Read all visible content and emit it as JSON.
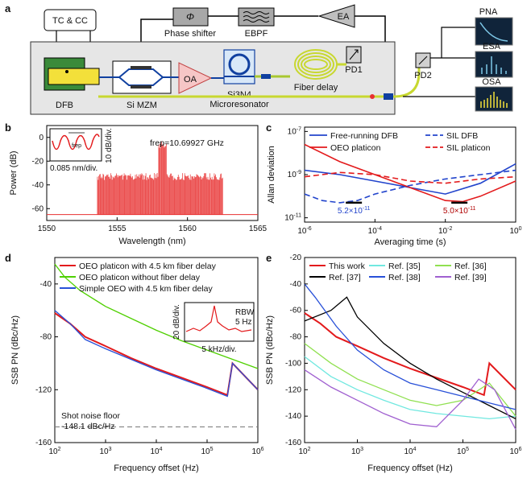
{
  "panel_labels": {
    "a": "a",
    "b": "b",
    "c": "c",
    "d": "d",
    "e": "e"
  },
  "diagram": {
    "tc_cc": "TC & CC",
    "phase_shifter_symbol": "Φ",
    "phase_shifter": "Phase shifter",
    "ebpf": "EBPF",
    "ea": "EA",
    "dfb": "DFB",
    "mzm": "Si MZM",
    "oa": "OA",
    "resonator_line1": "Si3N4",
    "resonator_line2": "Microresonator",
    "fiber_delay": "Fiber delay",
    "pd1": "PD1",
    "pd2": "PD2",
    "pna": "PNA",
    "esa": "ESA",
    "osa": "OSA",
    "colors": {
      "chip": "#e6e6e6",
      "dfb_green": "#3a8a3a",
      "dfb_yellow": "#f3e03a",
      "oa": "#f6c6c6",
      "ea": "#bfbfbf",
      "screen": "#10243a"
    }
  },
  "chart_data": [
    {
      "id": "b",
      "type": "line",
      "xlabel": "Wavelength (nm)",
      "ylabel": "Power (dB)",
      "xlim": [
        1550,
        1565
      ],
      "ylim": [
        -70,
        10
      ],
      "xticks": [
        "1550",
        "1555",
        "1560",
        "1565"
      ],
      "yticks": [
        "0",
        "-20",
        "-40",
        "-60"
      ],
      "annotation": "frep=10.69927 GHz",
      "comb": {
        "center": 1558.2,
        "span_lo": 1553.6,
        "span_hi": 1562.5,
        "spacing_nm": 0.085,
        "edge_power": -30,
        "center_power": -3,
        "floor": -65
      },
      "inset": {
        "xlabel": "0.085 nm/div.",
        "ylabel": "10 dB/div.",
        "marker": "frep"
      },
      "color": "#e83030"
    },
    {
      "id": "c",
      "type": "line",
      "scale": "log-log",
      "xlabel": "Averaging time (s)",
      "ylabel": "Allan deviation",
      "xticks": [
        "10-6",
        "10-4",
        "10-2",
        "100"
      ],
      "yticks": [
        "10-7",
        "10-9",
        "10-11"
      ],
      "series": [
        {
          "name": "Free-running DFB",
          "style": "solid",
          "color": "#2244cc",
          "x": [
            -6,
            -5,
            -4,
            -3,
            -2,
            -1,
            0
          ],
          "y": [
            -8.8,
            -9.0,
            -9.3,
            -9.6,
            -9.9,
            -9.4,
            -8.5
          ]
        },
        {
          "name": "OEO platicon",
          "style": "solid",
          "color": "#e31a1c",
          "x": [
            -6,
            -5,
            -4,
            -3,
            -2,
            -1.5,
            -1,
            0
          ],
          "y": [
            -7.6,
            -8.4,
            -9.0,
            -9.6,
            -10.2,
            -10.25,
            -10.0,
            -9.3
          ]
        },
        {
          "name": "SIL DFB",
          "style": "dashed",
          "color": "#2244cc",
          "x": [
            -6,
            -5.5,
            -5,
            -4.5,
            -4,
            -3,
            -2,
            -1,
            0
          ],
          "y": [
            -9.9,
            -10.2,
            -10.3,
            -10.2,
            -9.9,
            -9.5,
            -9.2,
            -9.0,
            -8.8
          ]
        },
        {
          "name": "SIL platicon",
          "style": "dashed",
          "color": "#e31a1c",
          "x": [
            -6,
            -5,
            -4,
            -3,
            -2,
            -1,
            0
          ],
          "y": [
            -9.1,
            -8.9,
            -9.0,
            -9.3,
            -9.4,
            -9.2,
            -9.1
          ]
        }
      ],
      "markers": [
        {
          "label": "5.2×10-11",
          "color": "#2244cc",
          "x": -4.6,
          "y": -10.3
        },
        {
          "label": "5.0×10-11",
          "color": "#b00000",
          "x": -1.6,
          "y": -10.3
        }
      ]
    },
    {
      "id": "d",
      "type": "line",
      "scale": "semilog-x",
      "xlabel": "Frequency offset (Hz)",
      "ylabel": "SSB PN (dBc/Hz)",
      "xlim": [
        2,
        6
      ],
      "ylim": [
        -160,
        -20
      ],
      "xticks": [
        "102",
        "103",
        "104",
        "105",
        "106"
      ],
      "yticks": [
        "-40",
        "-80",
        "-120",
        "-160"
      ],
      "series": [
        {
          "name": "OEO platicon with 4.5 km fiber delay",
          "color": "#e31a1c",
          "x": [
            2,
            2.3,
            2.6,
            3,
            3.5,
            4,
            4.5,
            5,
            5.4,
            5.5,
            6
          ],
          "y": [
            -62,
            -70,
            -80,
            -87,
            -96,
            -104,
            -111,
            -118,
            -124,
            -100,
            -120
          ]
        },
        {
          "name": "OEO platicon without fiber delay",
          "color": "#4fd000",
          "x": [
            2,
            2.2,
            2.5,
            3,
            3.5,
            4,
            4.5,
            5,
            5.5,
            6
          ],
          "y": [
            -25,
            -35,
            -45,
            -57,
            -66,
            -75,
            -83,
            -90,
            -97,
            -104
          ]
        },
        {
          "name": "Simple OEO with 4.5 km fiber delay",
          "color": "#2850d8",
          "x": [
            2,
            2.3,
            2.6,
            3,
            3.5,
            4,
            4.5,
            5,
            5.4,
            5.5,
            6
          ],
          "y": [
            -60,
            -70,
            -82,
            -89,
            -97,
            -105,
            -112,
            -119,
            -125,
            -100,
            -120
          ]
        }
      ],
      "floor": {
        "label_line1": "Shot noise floor",
        "label_line2": "-148.1 dBc/Hz",
        "value": -148.1
      },
      "inset": {
        "rbw_line1": "RBW",
        "rbw_line2": "5 Hz",
        "xlabel": "5 kHz/div.",
        "ylabel": "20 dB/div."
      }
    },
    {
      "id": "e",
      "type": "line",
      "scale": "semilog-x",
      "xlabel": "Frequency offset (Hz)",
      "ylabel": "SSB PN (dBc/Hz)",
      "xlim": [
        2,
        6
      ],
      "ylim": [
        -160,
        -20
      ],
      "xticks": [
        "102",
        "103",
        "104",
        "105",
        "106"
      ],
      "yticks": [
        "-20",
        "-40",
        "-60",
        "-80",
        "-100",
        "-120",
        "-140",
        "-160"
      ],
      "series": [
        {
          "name": "This work",
          "color": "#e31a1c",
          "x": [
            2,
            2.3,
            2.6,
            3,
            3.5,
            4,
            4.5,
            5,
            5.4,
            5.5,
            6
          ],
          "y": [
            -62,
            -70,
            -80,
            -87,
            -96,
            -104,
            -111,
            -118,
            -124,
            -100,
            -120
          ]
        },
        {
          "name": "Ref. [35]",
          "color": "#70e8e0",
          "x": [
            2,
            2.5,
            3,
            3.5,
            4,
            4.5,
            5,
            5.5,
            6
          ],
          "y": [
            -95,
            -110,
            -120,
            -128,
            -135,
            -138,
            -140,
            -142,
            -140
          ]
        },
        {
          "name": "Ref. [36]",
          "color": "#90e050",
          "x": [
            2,
            2.5,
            3,
            3.5,
            4,
            4.5,
            5,
            5.5,
            6
          ],
          "y": [
            -85,
            -100,
            -112,
            -120,
            -128,
            -132,
            -128,
            -115,
            -140
          ]
        },
        {
          "name": "Ref. [37]",
          "color": "#000000",
          "x": [
            2,
            2.5,
            2.8,
            3,
            3.5,
            4,
            4.5,
            5,
            5.5,
            6
          ],
          "y": [
            -68,
            -60,
            -50,
            -65,
            -85,
            -100,
            -112,
            -122,
            -132,
            -142
          ]
        },
        {
          "name": "Ref. [38]",
          "color": "#2850d8",
          "x": [
            2,
            2.2,
            2.6,
            3,
            3.5,
            4,
            4.5,
            5,
            5.5,
            6
          ],
          "y": [
            -40,
            -50,
            -72,
            -90,
            -105,
            -115,
            -120,
            -125,
            -130,
            -135
          ]
        },
        {
          "name": "Ref. [39]",
          "color": "#a060d0",
          "x": [
            2,
            2.5,
            3,
            3.5,
            4,
            4.5,
            5,
            5.3,
            5.6,
            6
          ],
          "y": [
            -105,
            -118,
            -128,
            -138,
            -146,
            -148,
            -128,
            -112,
            -120,
            -150
          ]
        }
      ]
    }
  ]
}
